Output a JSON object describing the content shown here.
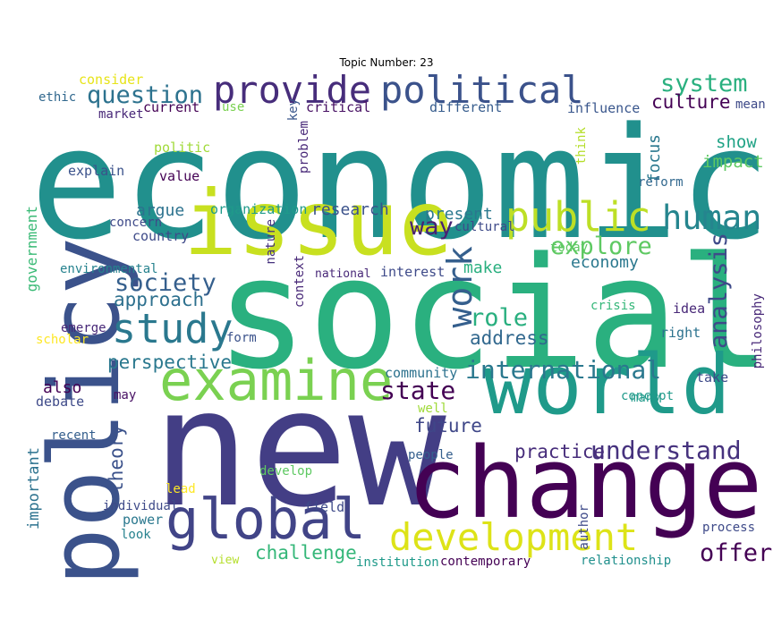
{
  "title": "Topic Number: 23",
  "words": [
    {
      "text": "economic",
      "color": "#21908d"
    },
    {
      "text": "social",
      "color": "#2ab07f"
    },
    {
      "text": "new",
      "color": "#433e85"
    },
    {
      "text": "policy",
      "color": "#3b528b"
    },
    {
      "text": "issue",
      "color": "#c8e020"
    },
    {
      "text": "change",
      "color": "#440154"
    },
    {
      "text": "world",
      "color": "#1f9a8a"
    },
    {
      "text": "examine",
      "color": "#7ad151"
    },
    {
      "text": "global",
      "color": "#414487"
    },
    {
      "text": "development",
      "color": "#dde318"
    },
    {
      "text": "public",
      "color": "#bddf26"
    },
    {
      "text": "human",
      "color": "#25858e"
    },
    {
      "text": "political",
      "color": "#3b528b"
    },
    {
      "text": "provide",
      "color": "#472d7b"
    },
    {
      "text": "study",
      "color": "#2a788e"
    },
    {
      "text": "work",
      "color": "#355f8d"
    },
    {
      "text": "international",
      "color": "#2a788e"
    },
    {
      "text": "understand",
      "color": "#46327e"
    },
    {
      "text": "state",
      "color": "#440154"
    },
    {
      "text": "system",
      "color": "#2ab07f"
    },
    {
      "text": "question",
      "color": "#2c728e"
    },
    {
      "text": "society",
      "color": "#355f8d"
    },
    {
      "text": "explore",
      "color": "#5ec962"
    },
    {
      "text": "role",
      "color": "#29af7f"
    },
    {
      "text": "analysis",
      "color": "#3e4a89"
    },
    {
      "text": "way",
      "color": "#482173"
    },
    {
      "text": "offer",
      "color": "#440154"
    },
    {
      "text": "challenge",
      "color": "#35b779"
    },
    {
      "text": "culture",
      "color": "#440154"
    },
    {
      "text": "approach",
      "color": "#2d708e"
    },
    {
      "text": "address",
      "color": "#31688e"
    },
    {
      "text": "perspective",
      "color": "#2a788e"
    },
    {
      "text": "theory",
      "color": "#3b528b"
    },
    {
      "text": "practice",
      "color": "#472d7b"
    },
    {
      "text": "future",
      "color": "#3f4788"
    },
    {
      "text": "research",
      "color": "#3b528b"
    },
    {
      "text": "argue",
      "color": "#2c728e"
    },
    {
      "text": "focus",
      "color": "#2a788e"
    },
    {
      "text": "impact",
      "color": "#5ec962"
    },
    {
      "text": "show",
      "color": "#20a386"
    },
    {
      "text": "economy",
      "color": "#2a788e"
    },
    {
      "text": "make",
      "color": "#29af7f"
    },
    {
      "text": "present",
      "color": "#2a788e"
    },
    {
      "text": "also",
      "color": "#440154"
    },
    {
      "text": "important",
      "color": "#2c728e"
    },
    {
      "text": "government",
      "color": "#3aba76"
    },
    {
      "text": "different",
      "color": "#365c8d"
    },
    {
      "text": "critical",
      "color": "#471063"
    },
    {
      "text": "current",
      "color": "#440154"
    },
    {
      "text": "influence",
      "color": "#39568c"
    },
    {
      "text": "market",
      "color": "#482878"
    },
    {
      "text": "ethic",
      "color": "#31688e"
    },
    {
      "text": "consider",
      "color": "#e7e419"
    },
    {
      "text": "use",
      "color": "#7ad151"
    },
    {
      "text": "key",
      "color": "#39568c"
    },
    {
      "text": "mean",
      "color": "#3e4a89"
    },
    {
      "text": "problem",
      "color": "#482878"
    },
    {
      "text": "politic",
      "color": "#a0da39"
    },
    {
      "text": "think",
      "color": "#b5de2b"
    },
    {
      "text": "explain",
      "color": "#3b528b"
    },
    {
      "text": "value",
      "color": "#440154"
    },
    {
      "text": "reform",
      "color": "#31688e"
    },
    {
      "text": "organization",
      "color": "#1f9a8a"
    },
    {
      "text": "concern",
      "color": "#3e4a89"
    },
    {
      "text": "country",
      "color": "#3e4a89"
    },
    {
      "text": "cultural",
      "color": "#3e4a89"
    },
    {
      "text": "today",
      "color": "#5ec962"
    },
    {
      "text": "environmental",
      "color": "#26828e"
    },
    {
      "text": "national",
      "color": "#482878"
    },
    {
      "text": "interest",
      "color": "#3e4a89"
    },
    {
      "text": "nature",
      "color": "#46327e"
    },
    {
      "text": "context",
      "color": "#482878"
    },
    {
      "text": "crisis",
      "color": "#35b779"
    },
    {
      "text": "idea",
      "color": "#482878"
    },
    {
      "text": "right",
      "color": "#2c728e"
    },
    {
      "text": "philosophy",
      "color": "#482878"
    },
    {
      "text": "emerge",
      "color": "#482878"
    },
    {
      "text": "scholar",
      "color": "#fde725"
    },
    {
      "text": "form",
      "color": "#3b528b"
    },
    {
      "text": "community",
      "color": "#2c728e"
    },
    {
      "text": "may",
      "color": "#471063"
    },
    {
      "text": "debate",
      "color": "#3e4a89"
    },
    {
      "text": "well",
      "color": "#a0da39"
    },
    {
      "text": "take",
      "color": "#3e4a89"
    },
    {
      "text": "many",
      "color": "#1f9a8a"
    },
    {
      "text": "concept",
      "color": "#1f9a8a"
    },
    {
      "text": "recent",
      "color": "#355f8d"
    },
    {
      "text": "people",
      "color": "#355f8d"
    },
    {
      "text": "develop",
      "color": "#5ec962"
    },
    {
      "text": "lead",
      "color": "#fde725"
    },
    {
      "text": "individual",
      "color": "#3e4a89"
    },
    {
      "text": "field",
      "color": "#3e4a89"
    },
    {
      "text": "power",
      "color": "#2a788e"
    },
    {
      "text": "look",
      "color": "#26828e"
    },
    {
      "text": "author",
      "color": "#3e4a89"
    },
    {
      "text": "process",
      "color": "#3e4a89"
    },
    {
      "text": "view",
      "color": "#b5de2b"
    },
    {
      "text": "institution",
      "color": "#1f9a8a"
    },
    {
      "text": "contemporary",
      "color": "#440154"
    },
    {
      "text": "relationship",
      "color": "#21908d"
    }
  ]
}
